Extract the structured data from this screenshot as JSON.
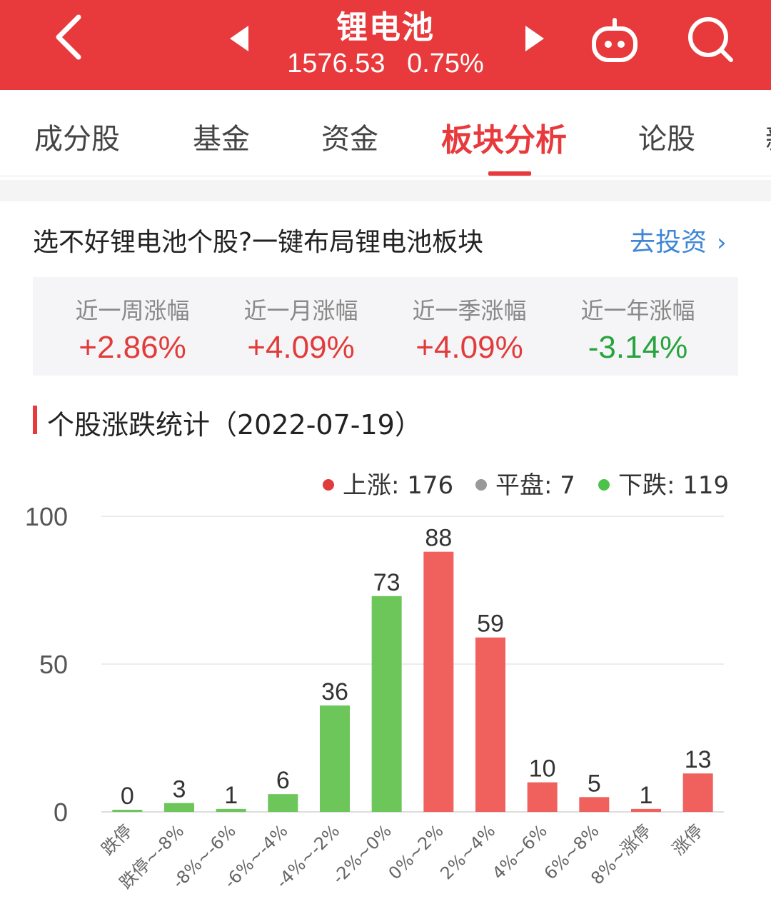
{
  "header": {
    "title": "锂电池",
    "price": "1576.53",
    "change": "0.75%",
    "colors": {
      "background": "#e83a3c",
      "text": "#ffffff"
    },
    "icons": {
      "back": "back-arrow-icon",
      "prev": "prev-triangle-icon",
      "next": "next-triangle-icon",
      "robot": "robot-icon",
      "search": "search-icon"
    }
  },
  "tabs": [
    {
      "label": "成分股",
      "active": false
    },
    {
      "label": "基金",
      "active": false
    },
    {
      "label": "资金",
      "active": false
    },
    {
      "label": "板块分析",
      "active": true
    },
    {
      "label": "论股",
      "active": false
    },
    {
      "label": "新",
      "active": false
    }
  ],
  "promo": {
    "text": "选不好锂电池个股?一键布局锂电池板块",
    "link_label": "去投资",
    "link_color": "#3f86d6"
  },
  "stats": [
    {
      "label": "近一周涨幅",
      "value": "+2.86%",
      "trend": "up"
    },
    {
      "label": "近一月涨幅",
      "value": "+4.09%",
      "trend": "up"
    },
    {
      "label": "近一季涨幅",
      "value": "+4.09%",
      "trend": "up"
    },
    {
      "label": "近一年涨幅",
      "value": "-3.14%",
      "trend": "down"
    }
  ],
  "colors": {
    "up": "#e23b3b",
    "down": "#27a43d",
    "flat": "#999999",
    "bar_up": "#f0605c",
    "bar_down": "#6cc65a"
  },
  "section": {
    "title": "个股涨跌统计（2022-07-19）"
  },
  "legend": {
    "up": "上涨: 176",
    "flat": "平盘: 7",
    "down": "下跌: 119"
  },
  "chart_data": {
    "type": "bar",
    "title": "个股涨跌统计（2022-07-19）",
    "categories": [
      "跌停",
      "跌停~-8%",
      "-8%~-6%",
      "-6%~-4%",
      "-4%~-2%",
      "-2%~0%",
      "0%~2%",
      "2%~4%",
      "4%~6%",
      "6%~8%",
      "8%~涨停",
      "涨停"
    ],
    "values": [
      0,
      3,
      1,
      6,
      36,
      73,
      88,
      59,
      10,
      5,
      1,
      13
    ],
    "bar_colors": [
      "down",
      "down",
      "down",
      "down",
      "down",
      "down",
      "up",
      "up",
      "up",
      "up",
      "up",
      "up"
    ],
    "ylim": [
      0,
      100
    ],
    "yticks": [
      0,
      50,
      100
    ],
    "grid": true,
    "legend_position": "top-right",
    "xlabel": "",
    "ylabel": ""
  }
}
